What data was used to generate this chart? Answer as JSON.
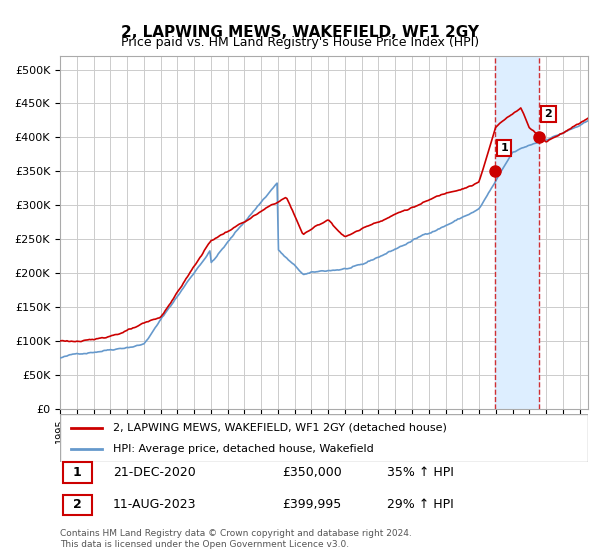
{
  "title": "2, LAPWING MEWS, WAKEFIELD, WF1 2GY",
  "subtitle": "Price paid vs. HM Land Registry's House Price Index (HPI)",
  "legend1": "2, LAPWING MEWS, WAKEFIELD, WF1 2GY (detached house)",
  "legend2": "HPI: Average price, detached house, Wakefield",
  "annotation1_date": "21-DEC-2020",
  "annotation1_price": "£350,000",
  "annotation1_hpi": "35% ↑ HPI",
  "annotation2_date": "11-AUG-2023",
  "annotation2_price": "£399,995",
  "annotation2_hpi": "29% ↑ HPI",
  "footer": "Contains HM Land Registry data © Crown copyright and database right 2024.\nThis data is licensed under the Open Government Licence v3.0.",
  "red_color": "#cc0000",
  "blue_color": "#6699cc",
  "shading_color": "#ddeeff",
  "grid_color": "#cccccc",
  "background_color": "#ffffff",
  "ylim": [
    0,
    520000
  ],
  "yticks": [
    0,
    50000,
    100000,
    150000,
    200000,
    250000,
    300000,
    350000,
    400000,
    450000,
    500000
  ],
  "sale1_year": 2020.97,
  "sale1_value": 350000,
  "sale2_year": 2023.6,
  "sale2_value": 399995,
  "xmin": 1995,
  "xmax": 2026.5
}
